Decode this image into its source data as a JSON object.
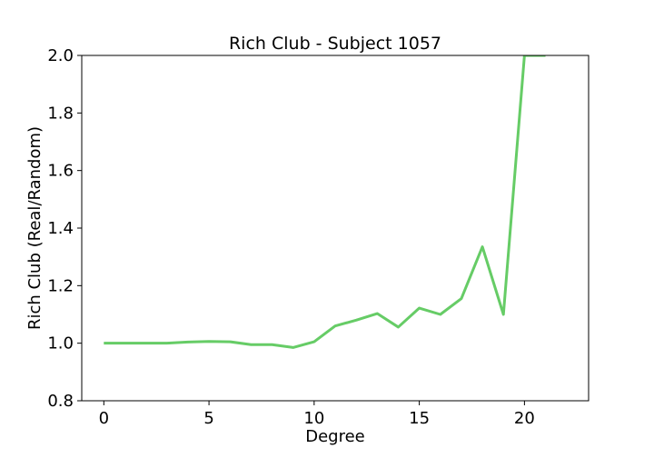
{
  "chart_data": {
    "type": "line",
    "title": "Rich Club - Subject 1057",
    "xlabel": "Degree",
    "ylabel": "Rich Club (Real/Random)",
    "xlim": [
      -1.05,
      23.05
    ],
    "ylim": [
      0.8,
      2.0
    ],
    "xticks": [
      0,
      5,
      10,
      15,
      20
    ],
    "yticks": [
      0.8,
      1.0,
      1.2,
      1.4,
      1.6,
      1.8,
      2.0
    ],
    "xtick_labels": [
      "0",
      "5",
      "10",
      "15",
      "20"
    ],
    "ytick_labels": [
      "0.8",
      "1.0",
      "1.2",
      "1.4",
      "1.6",
      "1.8",
      "2.0"
    ],
    "grid": false,
    "series": [
      {
        "color": "#66cc66",
        "x": [
          0,
          1,
          2,
          3,
          4,
          5,
          6,
          7,
          8,
          9,
          10,
          11,
          12,
          13,
          14,
          15,
          16,
          17,
          18,
          19,
          20,
          21
        ],
        "y": [
          1.0,
          1.0,
          1.0,
          1.0,
          1.004,
          1.006,
          1.005,
          0.995,
          0.995,
          0.985,
          1.005,
          1.06,
          1.08,
          1.103,
          1.056,
          1.122,
          1.1,
          1.155,
          1.335,
          1.1,
          2.0,
          2.0
        ]
      }
    ]
  }
}
